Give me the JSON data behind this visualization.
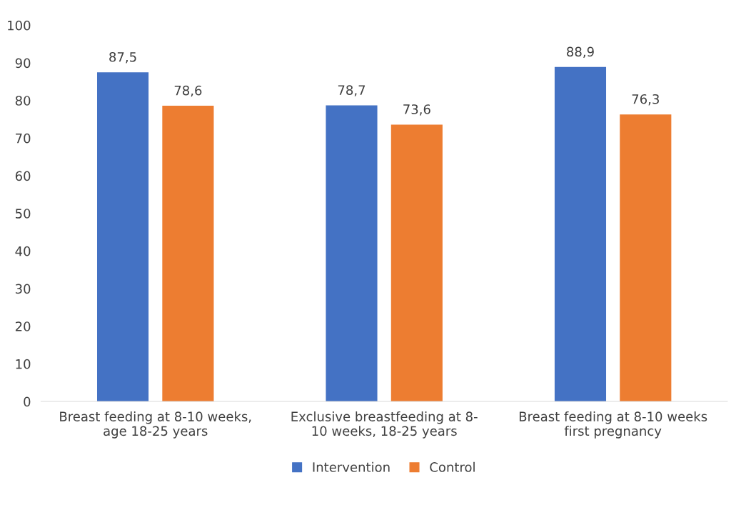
{
  "chart_data": {
    "type": "bar",
    "categories": [
      "Breast feeding at 8-10 weeks,\nage 18-25 years",
      "Exclusive breastfeeding at 8-\n10 weeks, 18-25 years",
      "Breast feeding at 8-10 weeks\nfirst pregnancy"
    ],
    "series": [
      {
        "name": "Intervention",
        "color": "#4472c4",
        "values": [
          87.5,
          78.7,
          88.9
        ],
        "value_labels": [
          "87,5",
          "78,7",
          "88,9"
        ]
      },
      {
        "name": "Control",
        "color": "#ed7d31",
        "values": [
          78.6,
          73.6,
          76.3
        ],
        "value_labels": [
          "78,6",
          "73,6",
          "76,3"
        ]
      }
    ],
    "ylim": [
      0,
      100
    ],
    "yticks": [
      0,
      10,
      20,
      30,
      40,
      50,
      60,
      70,
      80,
      90,
      100
    ],
    "grid": false,
    "legend": "bottom"
  }
}
